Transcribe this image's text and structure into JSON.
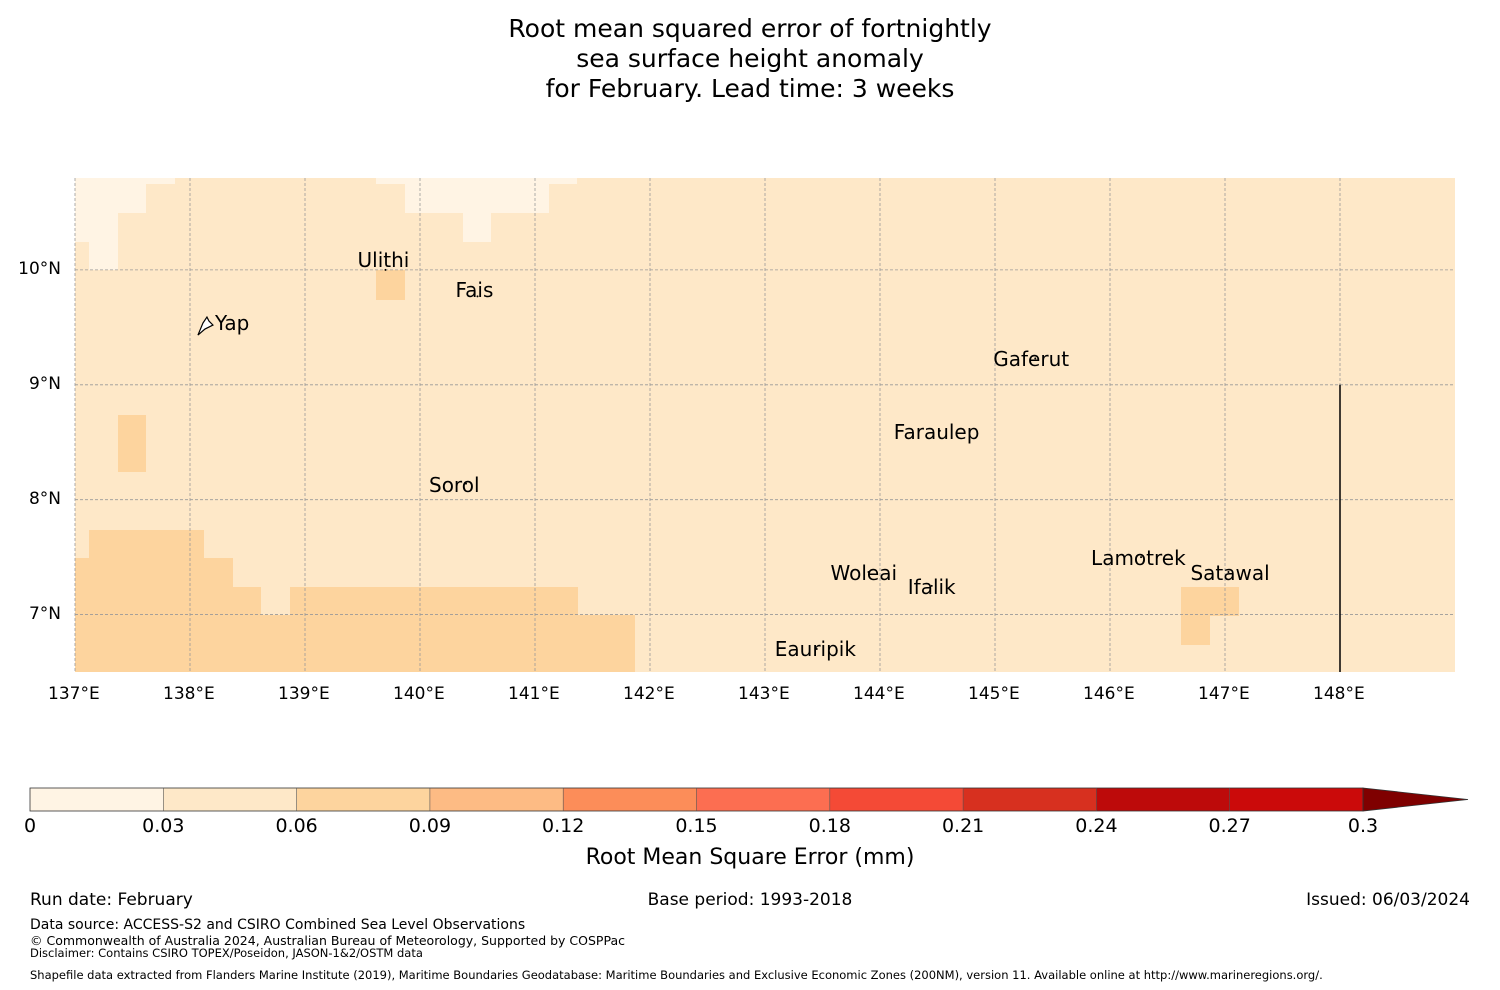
{
  "title": {
    "line1": "Root mean squared error of fortnightly",
    "line2": "sea surface height anomaly",
    "line3": "for February. Lead time: 3 weeks"
  },
  "map": {
    "lon_range": [
      137.0,
      149.0
    ],
    "lat_range": [
      6.5,
      10.8
    ],
    "lon_ticks": [
      137,
      138,
      139,
      140,
      141,
      142,
      143,
      144,
      145,
      146,
      147,
      148
    ],
    "lon_tick_labels": [
      "137°E",
      "138°E",
      "139°E",
      "140°E",
      "141°E",
      "142°E",
      "143°E",
      "144°E",
      "145°E",
      "146°E",
      "147°E",
      "148°E"
    ],
    "lat_ticks": [
      7,
      8,
      9,
      10
    ],
    "lat_tick_labels": [
      "7°N",
      "8°N",
      "9°N",
      "10°N"
    ],
    "colors": {
      "bin_0_003": "#fff4e4",
      "bin_003_006": "#fee8c8",
      "bin_006_009": "#fdd49e"
    },
    "grid_line_color": "#999999",
    "boundary_line_lon": 148.0,
    "boundary_line_lat_range": [
      6.5,
      9.0
    ],
    "islands": [
      {
        "name": "Ulithi",
        "lon": 139.7,
        "lat": 10.0
      },
      {
        "name": "Fais",
        "lon": 140.5,
        "lat": 9.77
      },
      {
        "name": "Yap",
        "lon": 138.13,
        "lat": 9.52
      },
      {
        "name": "Gaferut",
        "lon": 145.35,
        "lat": 9.23
      },
      {
        "name": "Faraulep",
        "lon": 144.52,
        "lat": 8.6
      },
      {
        "name": "Sorol",
        "lon": 140.4,
        "lat": 8.14
      },
      {
        "name": "Woleai",
        "lon": 143.9,
        "lat": 7.37
      },
      {
        "name": "Ifalik",
        "lon": 144.45,
        "lat": 7.25
      },
      {
        "name": "Lamotrek",
        "lon": 146.27,
        "lat": 7.5
      },
      {
        "name": "Satawal",
        "lon": 147.03,
        "lat": 7.37
      },
      {
        "name": "Eauripik",
        "lon": 143.45,
        "lat": 6.7
      }
    ]
  },
  "colorbar": {
    "levels": [
      0,
      0.03,
      0.06,
      0.09,
      0.12,
      0.15,
      0.18,
      0.21,
      0.24,
      0.27,
      0.3
    ],
    "tick_labels": [
      "0",
      "0.03",
      "0.06",
      "0.09",
      "0.12",
      "0.15",
      "0.18",
      "0.21",
      "0.24",
      "0.27",
      "0.3"
    ],
    "colors": [
      "#fff4e4",
      "#fee8c8",
      "#fdd49e",
      "#fdbb84",
      "#fc8d59",
      "#fc6e51",
      "#f44a36",
      "#d7301f",
      "#bd0a0a",
      "#cb0a0a",
      "#a30000"
    ],
    "extend_color": "#7f0000",
    "label": "Root Mean Square Error (mm)"
  },
  "footer": {
    "run_date": "Run date: February",
    "base_period": "Base period: 1993-2018",
    "issued": "Issued: 06/03/2024",
    "data_source": "Data source: ACCESS-S2 and CSIRO Combined Sea Level Observations",
    "copyright": "© Commonwealth of Australia 2024, Australian Bureau of Meteorology, Supported by COSPPac",
    "disclaimer": "Disclaimer: Contains CSIRO TOPEX/Poseidon, JASON-1&2/OSTM data",
    "shapefile": "Shapefile data extracted from Flanders Marine Institute (2019), Maritime Boundaries Geodatabase: Maritime Boundaries and Exclusive Economic Zones (200NM), version 11. Available online at http://www.marineregions.org/."
  }
}
